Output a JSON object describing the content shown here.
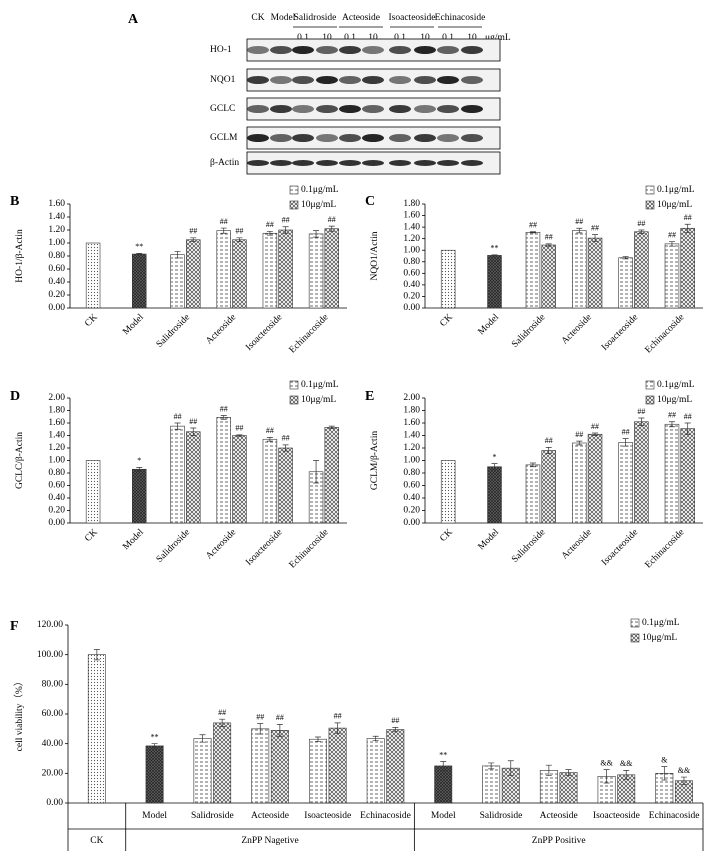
{
  "blot": {
    "panel": "A",
    "groups": [
      "CK",
      "Model",
      "Salidroside",
      "Acteoside",
      "Isoacteoside",
      "Echinacoside"
    ],
    "doses": [
      "0.1",
      "10"
    ],
    "unit": "μg/mL",
    "rows": [
      "HO-1",
      "NQO1",
      "GCLC",
      "GCLM",
      "β-Actin"
    ]
  },
  "chart_data": [
    {
      "type": "bar",
      "panel": "B",
      "ylabel": "HO-1/β-Actin",
      "categories": [
        "CK",
        "Model",
        "Salidroside",
        "Acteoside",
        "Isoacteoside",
        "Echinacoside"
      ],
      "values": [
        1.0,
        0.83,
        null,
        null,
        null,
        null
      ],
      "errors": [
        null,
        0.01,
        null,
        null,
        null,
        null
      ],
      "sig": [
        null,
        "**",
        null,
        null,
        null,
        null
      ],
      "series": [
        {
          "name": "0.1μg/mL",
          "values": [
            null,
            null,
            0.82,
            1.19,
            1.15,
            1.14
          ],
          "errors": [
            null,
            null,
            0.05,
            0.04,
            0.03,
            0.05
          ],
          "sig": [
            null,
            null,
            null,
            "##",
            "##",
            null
          ]
        },
        {
          "name": "10μg/mL",
          "values": [
            null,
            null,
            1.05,
            1.05,
            1.2,
            1.22
          ],
          "errors": [
            null,
            null,
            0.03,
            0.03,
            0.05,
            0.04
          ],
          "sig": [
            null,
            null,
            "##",
            "##",
            "##",
            "##"
          ]
        }
      ],
      "ylim": [
        0,
        1.6
      ],
      "yticks": [
        {
          "value": 0,
          "label": "0.00"
        },
        {
          "value": 0.2,
          "label": "0.20"
        },
        {
          "value": 0.4,
          "label": "0.40"
        },
        {
          "value": 0.6,
          "label": "0.60"
        },
        {
          "value": 0.8,
          "label": "0.80"
        },
        {
          "value": 1.0,
          "label": "1.00"
        },
        {
          "value": 1.2,
          "label": "1.20"
        },
        {
          "value": 1.4,
          "label": "1.40"
        },
        {
          "value": 1.6,
          "label": "1.60"
        }
      ]
    },
    {
      "type": "bar",
      "panel": "C",
      "ylabel": "NQO1/Actin",
      "categories": [
        "CK",
        "Model",
        "Salidroside",
        "Acteoside",
        "Isoacteoside",
        "Echinacoside"
      ],
      "values": [
        1.0,
        0.91,
        null,
        null,
        null,
        null
      ],
      "errors": [
        null,
        0.01,
        null,
        null,
        null,
        null
      ],
      "sig": [
        null,
        "**",
        null,
        null,
        null,
        null
      ],
      "series": [
        {
          "name": "0.1μg/mL",
          "values": [
            null,
            null,
            1.31,
            1.34,
            0.87,
            1.11
          ],
          "errors": [
            null,
            null,
            0.01,
            0.04,
            0.02,
            0.04
          ],
          "sig": [
            null,
            null,
            "##",
            "##",
            null,
            "##"
          ]
        },
        {
          "name": "10μg/mL",
          "values": [
            null,
            null,
            1.09,
            1.21,
            1.32,
            1.38
          ],
          "errors": [
            null,
            null,
            0.02,
            0.06,
            0.03,
            0.07
          ],
          "sig": [
            null,
            null,
            "##",
            "##",
            "##",
            "##"
          ]
        }
      ],
      "ylim": [
        0,
        1.8
      ],
      "yticks": [
        {
          "value": 0,
          "label": "0.00"
        },
        {
          "value": 0.2,
          "label": "0.20"
        },
        {
          "value": 0.4,
          "label": "0.40"
        },
        {
          "value": 0.6,
          "label": "0.60"
        },
        {
          "value": 0.8,
          "label": "0.80"
        },
        {
          "value": 1.0,
          "label": "1.00"
        },
        {
          "value": 1.2,
          "label": "1.20"
        },
        {
          "value": 1.4,
          "label": "1.40"
        },
        {
          "value": 1.6,
          "label": "1.60"
        },
        {
          "value": 1.8,
          "label": "1.80"
        }
      ]
    },
    {
      "type": "bar",
      "panel": "D",
      "ylabel": "GCLC/β-Actin",
      "categories": [
        "CK",
        "Model",
        "Salidroside",
        "Acteoside",
        "Isoacteoside",
        "Echinacoside"
      ],
      "values": [
        1.0,
        0.86,
        null,
        null,
        null,
        null
      ],
      "errors": [
        null,
        0.03,
        null,
        null,
        null,
        null
      ],
      "sig": [
        null,
        "*",
        null,
        null,
        null,
        null
      ],
      "series": [
        {
          "name": "0.1μg/mL",
          "values": [
            null,
            null,
            1.55,
            1.69,
            1.34,
            0.82
          ],
          "errors": [
            null,
            null,
            0.05,
            0.03,
            0.03,
            0.18
          ],
          "sig": [
            null,
            null,
            "##",
            "##",
            "##",
            null
          ]
        },
        {
          "name": "10μg/mL",
          "values": [
            null,
            null,
            1.46,
            1.4,
            1.2,
            1.53
          ],
          "errors": [
            null,
            null,
            0.06,
            0.01,
            0.05,
            0.02
          ],
          "sig": [
            null,
            null,
            "##",
            "##",
            "##",
            null
          ]
        }
      ],
      "ylim": [
        0,
        2.0
      ],
      "yticks": [
        {
          "value": 0,
          "label": "0.00"
        },
        {
          "value": 0.2,
          "label": "0.20"
        },
        {
          "value": 0.4,
          "label": "0.40"
        },
        {
          "value": 0.6,
          "label": "0.60"
        },
        {
          "value": 0.8,
          "label": "0.80"
        },
        {
          "value": 1.0,
          "label": "1.00"
        },
        {
          "value": 1.2,
          "label": "1.20"
        },
        {
          "value": 1.4,
          "label": "1.40"
        },
        {
          "value": 1.6,
          "label": "1.60"
        },
        {
          "value": 1.8,
          "label": "1.80"
        },
        {
          "value": 2.0,
          "label": "2.00"
        }
      ]
    },
    {
      "type": "bar",
      "panel": "E",
      "ylabel": "GCLM/β-Actin",
      "categories": [
        "CK",
        "Model",
        "Salidroside",
        "Acteoside",
        "Isoacteoside",
        "Echinacoside"
      ],
      "values": [
        1.0,
        0.9,
        null,
        null,
        null,
        null
      ],
      "errors": [
        null,
        0.05,
        null,
        null,
        null,
        null
      ],
      "sig": [
        null,
        "*",
        null,
        null,
        null,
        null
      ],
      "series": [
        {
          "name": "0.1μg/mL",
          "values": [
            null,
            null,
            0.93,
            1.28,
            1.29,
            1.58
          ],
          "errors": [
            null,
            null,
            0.03,
            0.03,
            0.06,
            0.04
          ],
          "sig": [
            null,
            null,
            null,
            "##",
            "##",
            "##"
          ]
        },
        {
          "name": "10μg/mL",
          "values": [
            null,
            null,
            1.16,
            1.42,
            1.62,
            1.51
          ],
          "errors": [
            null,
            null,
            0.05,
            0.02,
            0.06,
            0.09
          ],
          "sig": [
            null,
            null,
            "##",
            "##",
            "##",
            "##"
          ]
        }
      ],
      "ylim": [
        0,
        2.0
      ],
      "yticks": [
        {
          "value": 0,
          "label": "0.00"
        },
        {
          "value": 0.2,
          "label": "0.20"
        },
        {
          "value": 0.4,
          "label": "0.40"
        },
        {
          "value": 0.6,
          "label": "0.60"
        },
        {
          "value": 0.8,
          "label": "0.80"
        },
        {
          "value": 1.0,
          "label": "1.00"
        },
        {
          "value": 1.2,
          "label": "1.20"
        },
        {
          "value": 1.4,
          "label": "1.40"
        },
        {
          "value": 1.6,
          "label": "1.60"
        },
        {
          "value": 1.8,
          "label": "1.80"
        },
        {
          "value": 2.0,
          "label": "2.00"
        }
      ]
    },
    {
      "type": "bar",
      "panel": "F",
      "ylabel": "cell viability（%）",
      "categories": [
        null,
        "Model",
        "Salidroside",
        "Acteoside",
        "Isoacteoside",
        "Echinacoside",
        "Model",
        "Salidroside",
        "Acteoside",
        "Isoacteoside",
        "Echinacoside"
      ],
      "groups": [
        {
          "name": "CK",
          "size": 1
        },
        {
          "name": "ZnPP Nagetive",
          "size": 5
        },
        {
          "name": "ZnPP Positive",
          "size": 5
        }
      ],
      "values": [
        100,
        38.5,
        null,
        null,
        null,
        null,
        25,
        null,
        null,
        null,
        null
      ],
      "errors": [
        3.5,
        1.5,
        null,
        null,
        null,
        null,
        3,
        null,
        null,
        null,
        null
      ],
      "sig": [
        null,
        "**",
        null,
        null,
        null,
        null,
        "**",
        null,
        null,
        null,
        null
      ],
      "series": [
        {
          "name": "0.1μg/mL",
          "values": [
            null,
            null,
            43.5,
            50,
            43,
            43.5,
            null,
            25,
            22,
            18,
            20
          ],
          "errors": [
            null,
            null,
            2.5,
            3.5,
            1.5,
            1.5,
            null,
            2,
            3.5,
            4.5,
            4.5
          ],
          "sig": [
            null,
            null,
            null,
            "##",
            null,
            null,
            null,
            null,
            null,
            "&&",
            "&"
          ]
        },
        {
          "name": "10μg/mL",
          "values": [
            null,
            null,
            54,
            49,
            50.5,
            49.5,
            null,
            23.5,
            20.5,
            19,
            15
          ],
          "errors": [
            null,
            null,
            2.5,
            4,
            3.5,
            1.5,
            null,
            5,
            2,
            3,
            2.5
          ],
          "sig": [
            null,
            null,
            "##",
            "##",
            "##",
            "##",
            null,
            null,
            null,
            "&&",
            "&&"
          ]
        }
      ],
      "ylim": [
        0,
        120
      ],
      "yticks": [
        {
          "value": 0,
          "label": "0.00"
        },
        {
          "value": 20,
          "label": "20.00"
        },
        {
          "value": 40,
          "label": "40.00"
        },
        {
          "value": 60,
          "label": "60.00"
        },
        {
          "value": 80,
          "label": "80.00"
        },
        {
          "value": 100,
          "label": "100.00"
        },
        {
          "value": 120,
          "label": "120.00"
        }
      ]
    }
  ]
}
